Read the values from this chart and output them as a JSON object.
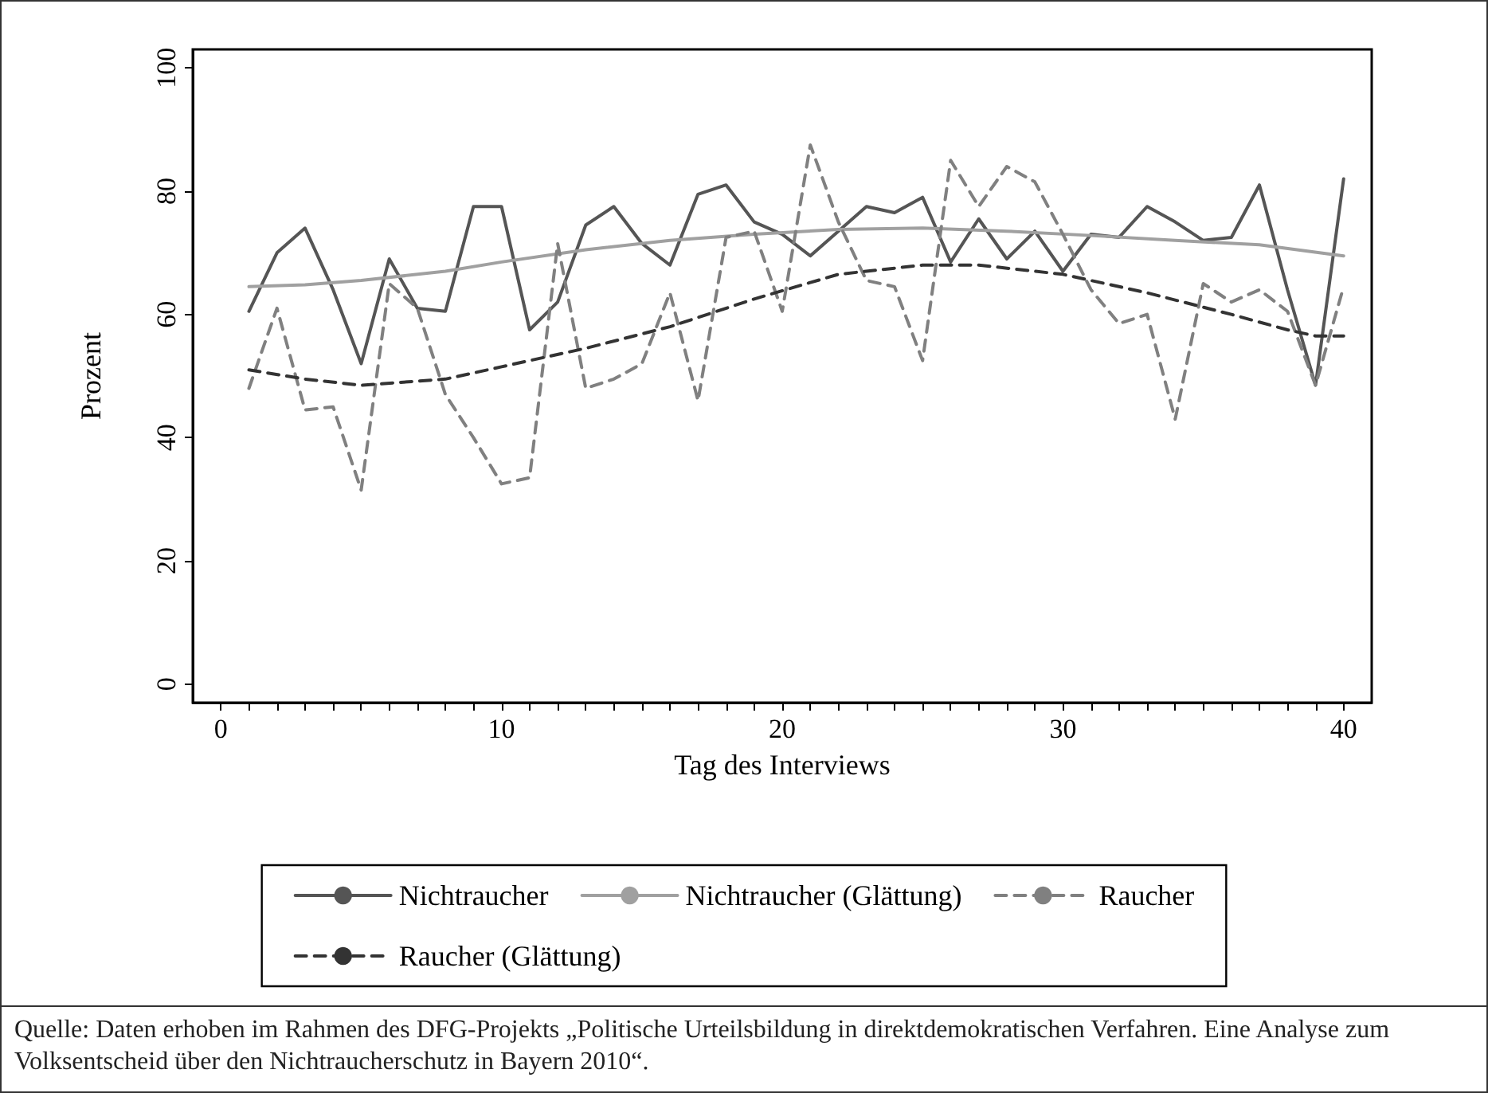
{
  "chart_data": {
    "type": "line",
    "xlabel": "Tag des Interviews",
    "ylabel": "Prozent",
    "x": [
      1,
      2,
      3,
      4,
      5,
      6,
      7,
      8,
      9,
      10,
      11,
      12,
      13,
      14,
      15,
      16,
      17,
      18,
      19,
      20,
      21,
      22,
      23,
      24,
      25,
      26,
      27,
      28,
      29,
      30,
      31,
      32,
      33,
      34,
      35,
      36,
      37,
      38,
      39,
      40
    ],
    "series": [
      {
        "name": "Nichtraucher",
        "color": "#555555",
        "line_style": "solid",
        "values": [
          60.5,
          70,
          74,
          64,
          52,
          69,
          61,
          60.5,
          77.5,
          77.5,
          57.5,
          62,
          74.5,
          77.5,
          71.5,
          68,
          79.5,
          81,
          75,
          73,
          69.5,
          73.5,
          77.5,
          76.5,
          79,
          68.5,
          75.5,
          69,
          73.5,
          67,
          73,
          72.5,
          77.5,
          75,
          72,
          72.5,
          81,
          64,
          48.5,
          82
        ]
      },
      {
        "name": "Nichtraucher (Glättung)",
        "color": "#a0a0a0",
        "line_style": "solid",
        "x": [
          1,
          3,
          5,
          8,
          10,
          13,
          16,
          19,
          22,
          25,
          28,
          31,
          34,
          37,
          40
        ],
        "values": [
          64.5,
          64.8,
          65.5,
          67,
          68.5,
          70.5,
          72,
          73,
          73.8,
          74,
          73.5,
          72.8,
          72,
          71.3,
          69.5
        ]
      },
      {
        "name": "Raucher",
        "color": "#808080",
        "line_style": "dashed",
        "values": [
          48,
          61,
          44.5,
          45,
          31.5,
          65,
          61,
          47,
          40,
          32.5,
          33.5,
          71.5,
          48,
          49.5,
          52,
          63.5,
          46,
          72.5,
          73.5,
          60.5,
          87.5,
          75,
          65.5,
          64.5,
          52.5,
          85,
          77.5,
          84,
          81.5,
          73,
          64,
          58.5,
          60,
          43,
          65,
          62,
          64,
          60.5,
          48.5,
          64.5
        ]
      },
      {
        "name": "Raucher (Glättung)",
        "color": "#333333",
        "line_style": "dashed",
        "x": [
          1,
          3,
          5,
          8,
          10,
          13,
          16,
          19,
          22,
          25,
          27,
          30,
          33,
          36,
          38,
          39,
          40
        ],
        "values": [
          51,
          49.5,
          48.5,
          49.5,
          51.5,
          54.5,
          58,
          62.5,
          66.5,
          68,
          68,
          66.5,
          63.5,
          60,
          57.5,
          56.5,
          56.5
        ]
      }
    ],
    "xlim": [
      -1,
      41
    ],
    "xticks": [
      0,
      {
        "value": 1,
        "label": null
      },
      {
        "value": 2,
        "label": null
      },
      {
        "value": 3,
        "label": null
      },
      {
        "value": 4,
        "label": null
      },
      {
        "value": 5,
        "label": null
      },
      {
        "value": 6,
        "label": null
      },
      {
        "value": 7,
        "label": null
      },
      {
        "value": 8,
        "label": null
      },
      {
        "value": 9,
        "label": null
      },
      10,
      {
        "value": 11,
        "label": null
      },
      {
        "value": 12,
        "label": null
      },
      {
        "value": 13,
        "label": null
      },
      {
        "value": 14,
        "label": null
      },
      {
        "value": 15,
        "label": null
      },
      {
        "value": 16,
        "label": null
      },
      {
        "value": 17,
        "label": null
      },
      {
        "value": 18,
        "label": null
      },
      {
        "value": 19,
        "label": null
      },
      20,
      {
        "value": 21,
        "label": null
      },
      {
        "value": 22,
        "label": null
      },
      {
        "value": 23,
        "label": null
      },
      {
        "value": 24,
        "label": null
      },
      {
        "value": 25,
        "label": null
      },
      {
        "value": 26,
        "label": null
      },
      {
        "value": 27,
        "label": null
      },
      {
        "value": 28,
        "label": null
      },
      {
        "value": 29,
        "label": null
      },
      30,
      {
        "value": 31,
        "label": null
      },
      {
        "value": 32,
        "label": null
      },
      {
        "value": 33,
        "label": null
      },
      {
        "value": 34,
        "label": null
      },
      {
        "value": 35,
        "label": null
      },
      {
        "value": 36,
        "label": null
      },
      {
        "value": 37,
        "label": null
      },
      {
        "value": 38,
        "label": null
      },
      {
        "value": 39,
        "label": null
      },
      40
    ],
    "ylim": [
      -3,
      103
    ],
    "yticks": [
      0,
      20,
      40,
      60,
      80,
      100
    ],
    "grid": false,
    "legend": "bottom",
    "marker": "none",
    "annotations": [
      "Quelle: Daten erhoben im Rahmen des DFG-Projekts „Politische Urteilsbildung in direktdemokratischen Verfahren. Eine Analyse zum Volksentscheid über den Nichtraucherschutz in Bayern 2010“."
    ]
  }
}
